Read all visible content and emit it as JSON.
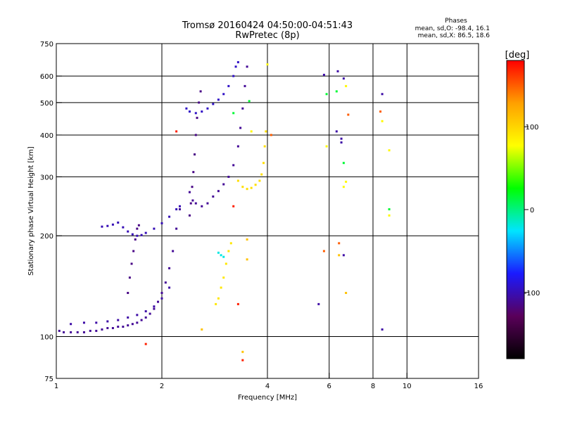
{
  "chart_data": {
    "type": "scatter",
    "title": "Tromsø 20160424 04:50:00-04:51:43",
    "subtitle": "RwPretec (8p)",
    "xlabel": "Frequency [MHz]",
    "ylabel": "Stationary phase Virtual Height [km]",
    "x_scale": "log",
    "y_scale": "log",
    "xlim": [
      1,
      16
    ],
    "ylim": [
      75,
      750
    ],
    "x_ticks": [
      1,
      2,
      4,
      6,
      8,
      10,
      16
    ],
    "y_ticks": [
      75,
      100,
      200,
      300,
      400,
      500,
      600,
      750
    ],
    "grid": true,
    "phase_header": {
      "title": "Phases",
      "line_o": "mean, sd,O: -98.4, 16.1",
      "line_x": "mean, sd,X:  86.5, 18.6"
    },
    "colorbar": {
      "label": "[deg]",
      "range": [
        -180,
        180
      ],
      "ticks": [
        100,
        0,
        -100
      ],
      "colors": [
        "#000000",
        "#5a005a",
        "#1a1aff",
        "#00e5ff",
        "#00ff00",
        "#ffff00",
        "#ffa000",
        "#ff0000"
      ]
    },
    "traces": [
      {
        "phase": -110,
        "points": [
          [
            1.02,
            104
          ],
          [
            1.05,
            103
          ],
          [
            1.1,
            103
          ],
          [
            1.15,
            103
          ],
          [
            1.2,
            103
          ],
          [
            1.25,
            104
          ],
          [
            1.3,
            104
          ],
          [
            1.35,
            105
          ],
          [
            1.4,
            106
          ],
          [
            1.45,
            106
          ],
          [
            1.5,
            107
          ],
          [
            1.55,
            107
          ],
          [
            1.6,
            108
          ],
          [
            1.65,
            109
          ],
          [
            1.7,
            110
          ],
          [
            1.75,
            112
          ],
          [
            1.8,
            114
          ],
          [
            1.85,
            117
          ],
          [
            1.9,
            121
          ],
          [
            1.95,
            127
          ],
          [
            2.0,
            135
          ],
          [
            2.05,
            145
          ],
          [
            2.1,
            160
          ],
          [
            2.15,
            180
          ],
          [
            2.2,
            210
          ],
          [
            2.25,
            240
          ]
        ]
      },
      {
        "phase": -105,
        "points": [
          [
            1.1,
            109
          ],
          [
            1.2,
            110
          ],
          [
            1.3,
            110
          ],
          [
            1.4,
            111
          ],
          [
            1.5,
            112
          ],
          [
            1.6,
            114
          ],
          [
            1.7,
            116
          ],
          [
            1.8,
            119
          ],
          [
            1.9,
            123
          ],
          [
            2.0,
            130
          ],
          [
            2.1,
            140
          ]
        ]
      },
      {
        "phase": -100,
        "points": [
          [
            1.35,
            213
          ],
          [
            1.4,
            214
          ],
          [
            1.45,
            216
          ],
          [
            1.5,
            219
          ],
          [
            1.55,
            212
          ],
          [
            1.6,
            206
          ],
          [
            1.65,
            202
          ],
          [
            1.7,
            200
          ],
          [
            1.75,
            201
          ],
          [
            1.8,
            204
          ],
          [
            1.9,
            210
          ],
          [
            2.0,
            218
          ],
          [
            2.1,
            228
          ],
          [
            2.2,
            240
          ],
          [
            2.25,
            245
          ]
        ]
      },
      {
        "phase": -115,
        "points": [
          [
            1.6,
            135
          ],
          [
            1.62,
            150
          ],
          [
            1.64,
            165
          ],
          [
            1.66,
            180
          ],
          [
            1.68,
            195
          ],
          [
            1.7,
            210
          ],
          [
            1.72,
            215
          ]
        ]
      },
      {
        "phase": -110,
        "points": [
          [
            2.4,
            270
          ],
          [
            2.45,
            255
          ],
          [
            2.5,
            250
          ],
          [
            2.6,
            245
          ],
          [
            2.7,
            250
          ],
          [
            2.8,
            262
          ],
          [
            2.9,
            272
          ],
          [
            3.0,
            285
          ],
          [
            3.1,
            300
          ],
          [
            3.2,
            325
          ],
          [
            3.3,
            370
          ],
          [
            3.35,
            420
          ],
          [
            3.4,
            480
          ],
          [
            3.45,
            560
          ],
          [
            3.5,
            640
          ]
        ]
      },
      {
        "phase": -95,
        "points": [
          [
            2.35,
            480
          ],
          [
            2.4,
            470
          ],
          [
            2.5,
            465
          ],
          [
            2.6,
            470
          ],
          [
            2.7,
            480
          ],
          [
            2.8,
            495
          ],
          [
            2.9,
            510
          ],
          [
            3.0,
            530
          ],
          [
            3.1,
            560
          ],
          [
            3.2,
            600
          ],
          [
            3.25,
            640
          ],
          [
            3.3,
            660
          ]
        ]
      },
      {
        "phase": -115,
        "points": [
          [
            2.4,
            230
          ],
          [
            2.42,
            250
          ],
          [
            2.44,
            280
          ],
          [
            2.46,
            310
          ],
          [
            2.48,
            350
          ],
          [
            2.5,
            400
          ],
          [
            2.52,
            450
          ],
          [
            2.55,
            500
          ],
          [
            2.58,
            540
          ]
        ]
      },
      {
        "phase": 95,
        "points": [
          [
            3.3,
            292
          ],
          [
            3.4,
            280
          ],
          [
            3.5,
            276
          ],
          [
            3.6,
            278
          ],
          [
            3.7,
            284
          ],
          [
            3.8,
            292
          ],
          [
            3.85,
            305
          ],
          [
            3.9,
            330
          ],
          [
            3.93,
            370
          ],
          [
            3.96,
            410
          ]
        ]
      },
      {
        "phase": 90,
        "points": [
          [
            2.85,
            125
          ],
          [
            2.9,
            130
          ],
          [
            2.95,
            140
          ],
          [
            3.0,
            150
          ],
          [
            3.05,
            165
          ],
          [
            3.1,
            180
          ],
          [
            3.15,
            190
          ]
        ]
      },
      {
        "phase": -20,
        "points": [
          [
            2.9,
            178
          ],
          [
            2.95,
            175
          ],
          [
            3.0,
            173
          ]
        ]
      },
      {
        "phase": -105,
        "points": [
          [
            6.3,
            410
          ],
          [
            6.5,
            390
          ],
          [
            6.5,
            380
          ],
          [
            6.6,
            590
          ],
          [
            6.35,
            620
          ]
        ]
      },
      {
        "phase": 80,
        "points": [
          [
            6.6,
            280
          ],
          [
            6.7,
            290
          ],
          [
            6.7,
            560
          ],
          [
            5.9,
            370
          ],
          [
            8.9,
            360
          ],
          [
            8.9,
            230
          ],
          [
            8.5,
            440
          ],
          [
            4.0,
            650
          ],
          [
            3.6,
            410
          ]
        ]
      },
      {
        "phase": 150,
        "points": [
          [
            6.8,
            460
          ],
          [
            8.4,
            470
          ],
          [
            6.4,
            190
          ],
          [
            5.8,
            180
          ],
          [
            4.1,
            400
          ]
        ]
      },
      {
        "phase": -105,
        "points": [
          [
            8.5,
            530
          ],
          [
            5.8,
            605
          ],
          [
            6.6,
            175
          ],
          [
            8.5,
            105
          ],
          [
            5.6,
            125
          ]
        ]
      },
      {
        "phase": 15,
        "points": [
          [
            6.3,
            540
          ],
          [
            5.9,
            530
          ],
          [
            6.6,
            330
          ],
          [
            8.9,
            240
          ],
          [
            3.2,
            465
          ],
          [
            3.55,
            505
          ]
        ]
      },
      {
        "phase": 170,
        "points": [
          [
            3.4,
            85
          ],
          [
            3.3,
            125
          ],
          [
            3.2,
            245
          ],
          [
            2.2,
            410
          ],
          [
            1.8,
            95
          ]
        ]
      },
      {
        "phase": 110,
        "points": [
          [
            3.4,
            90
          ],
          [
            3.5,
            170
          ],
          [
            2.6,
            105
          ],
          [
            3.5,
            195
          ],
          [
            6.4,
            175
          ],
          [
            6.7,
            135
          ]
        ]
      }
    ]
  }
}
